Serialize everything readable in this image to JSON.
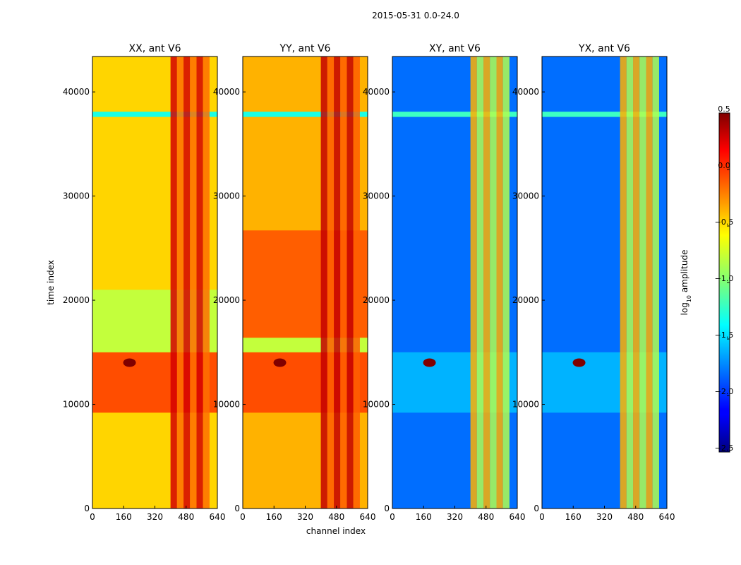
{
  "figure": {
    "suptitle": "2015-05-31 0.0-24.0",
    "ylabel": "time index",
    "xlabel": "channel index",
    "colorbar_label": "log10 amplitude",
    "colorbar_label_main": "log",
    "colorbar_label_sub": "10",
    "colorbar_label_tail": " amplitude"
  },
  "chart_data": {
    "type": "heatmap",
    "colormap": "jet",
    "x_range": [
      0,
      640
    ],
    "y_range": [
      0,
      43400
    ],
    "x_ticks": [
      0,
      160,
      320,
      480,
      640
    ],
    "y_ticks": [
      0,
      10000,
      20000,
      30000,
      40000
    ],
    "color_range": [
      -2.5,
      0.5
    ],
    "colorbar_ticks": [
      0.5,
      0.0,
      -0.5,
      -1.0,
      -1.5,
      -2.0,
      -2.5
    ],
    "colorbar_tick_labels": [
      "0.5",
      "0.0",
      "−0.5",
      "−1.0",
      "−1.5",
      "−2.0",
      "−2.5"
    ],
    "panels": [
      {
        "title": "XX, ant V6",
        "baseline_log10_amplitude": -0.5,
        "rfi_channel_range": [
          400,
          600
        ],
        "rfi_log10_amplitude": 0.25,
        "bands": [
          {
            "time_range": [
              9200,
              15000
            ],
            "log10_amplitude": -0.1
          },
          {
            "time_range": [
              15000,
              21000
            ],
            "log10_amplitude": -0.8
          },
          {
            "time_range": [
              37600,
              38100
            ],
            "log10_amplitude": -1.3
          }
        ],
        "hotspot": {
          "channel": 190,
          "time": 14000
        }
      },
      {
        "title": "YY, ant V6",
        "baseline_log10_amplitude": -0.4,
        "rfi_channel_range": [
          400,
          600
        ],
        "rfi_log10_amplitude": 0.3,
        "bands": [
          {
            "time_range": [
              9200,
              15000
            ],
            "log10_amplitude": -0.1
          },
          {
            "time_range": [
              15000,
              16400
            ],
            "log10_amplitude": -0.8
          },
          {
            "time_range": [
              16400,
              26700
            ],
            "log10_amplitude": -0.15
          },
          {
            "time_range": [
              37600,
              38100
            ],
            "log10_amplitude": -1.3
          }
        ],
        "hotspot": {
          "channel": 190,
          "time": 14000
        }
      },
      {
        "title": "XY, ant V6",
        "baseline_log10_amplitude": -1.8,
        "rfi_channel_range": [
          400,
          600
        ],
        "rfi_log10_amplitude": -0.4,
        "bands": [
          {
            "time_range": [
              9200,
              15000
            ],
            "log10_amplitude": -1.6
          },
          {
            "time_range": [
              37600,
              38100
            ],
            "log10_amplitude": -1.2
          }
        ],
        "hotspot": {
          "channel": 190,
          "time": 14000
        }
      },
      {
        "title": "YX, ant V6",
        "baseline_log10_amplitude": -1.8,
        "rfi_channel_range": [
          400,
          600
        ],
        "rfi_log10_amplitude": -0.4,
        "bands": [
          {
            "time_range": [
              9200,
              15000
            ],
            "log10_amplitude": -1.6
          },
          {
            "time_range": [
              37600,
              38100
            ],
            "log10_amplitude": -1.2
          }
        ],
        "hotspot": {
          "channel": 190,
          "time": 14000
        }
      }
    ]
  }
}
